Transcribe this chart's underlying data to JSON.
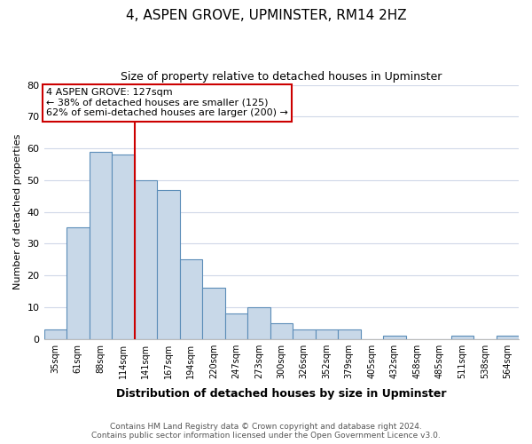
{
  "title": "4, ASPEN GROVE, UPMINSTER, RM14 2HZ",
  "subtitle": "Size of property relative to detached houses in Upminster",
  "xlabel": "Distribution of detached houses by size in Upminster",
  "ylabel": "Number of detached properties",
  "bar_color": "#c8d8e8",
  "bar_edge_color": "#5b8db8",
  "background_color": "#ffffff",
  "grid_color": "#d0d8e8",
  "marker_line_color": "#cc0000",
  "marker_line_x_label": "114sqm",
  "annotation_text_line1": "4 ASPEN GROVE: 127sqm",
  "annotation_text_line2": "← 38% of detached houses are smaller (125)",
  "annotation_text_line3": "62% of semi-detached houses are larger (200) →",
  "annotation_box_color": "#ffffff",
  "annotation_box_edge": "#cc0000",
  "categories": [
    "35sqm",
    "61sqm",
    "88sqm",
    "114sqm",
    "141sqm",
    "167sqm",
    "194sqm",
    "220sqm",
    "247sqm",
    "273sqm",
    "300sqm",
    "326sqm",
    "352sqm",
    "379sqm",
    "405sqm",
    "432sqm",
    "458sqm",
    "485sqm",
    "511sqm",
    "538sqm",
    "564sqm"
  ],
  "values": [
    3,
    35,
    59,
    58,
    50,
    47,
    25,
    16,
    8,
    10,
    5,
    3,
    3,
    3,
    0,
    1,
    0,
    0,
    1,
    0,
    1
  ],
  "ylim": [
    0,
    80
  ],
  "yticks": [
    0,
    10,
    20,
    30,
    40,
    50,
    60,
    70,
    80
  ],
  "footer_line1": "Contains HM Land Registry data © Crown copyright and database right 2024.",
  "footer_line2": "Contains public sector information licensed under the Open Government Licence v3.0."
}
